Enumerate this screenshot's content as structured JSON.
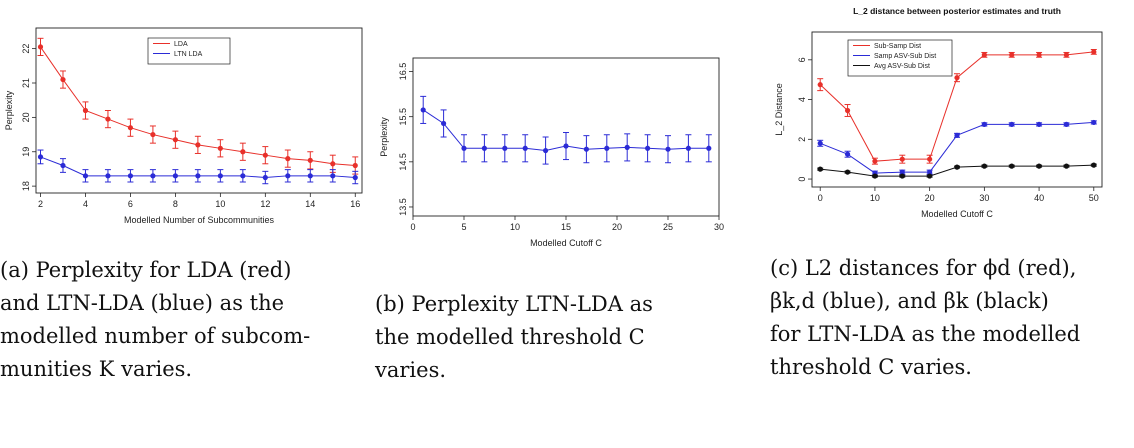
{
  "charts": [
    {
      "type": "line",
      "title": "",
      "xlabel": "Modelled Number of Subcommunities",
      "ylabel": "Perplexity",
      "xlim": [
        1.8,
        16.3
      ],
      "ylim": [
        17.8,
        22.6
      ],
      "xticks": [
        "2",
        "4",
        "6",
        "8",
        "10",
        "12",
        "14",
        "16"
      ],
      "xtick_values": [
        2,
        4,
        6,
        8,
        10,
        12,
        14,
        16
      ],
      "yticks": [
        "18",
        "19",
        "20",
        "21",
        "22"
      ],
      "ytick_values": [
        18,
        19,
        20,
        21,
        22
      ],
      "legend": {
        "placement": "top-center",
        "entries": [
          "LDA",
          "LTN LDA"
        ]
      },
      "grid": false,
      "series": [
        {
          "name": "LDA",
          "color": "#e8302a",
          "x": [
            2,
            3,
            4,
            5,
            6,
            7,
            8,
            9,
            10,
            11,
            12,
            13,
            14,
            15,
            16
          ],
          "y": [
            22.05,
            21.1,
            20.2,
            19.95,
            19.7,
            19.5,
            19.35,
            19.2,
            19.1,
            19.0,
            18.9,
            18.8,
            18.75,
            18.65,
            18.6
          ],
          "err": [
            0.25,
            0.25,
            0.25,
            0.25,
            0.25,
            0.25,
            0.25,
            0.25,
            0.25,
            0.25,
            0.25,
            0.25,
            0.25,
            0.25,
            0.25
          ]
        },
        {
          "name": "LTN LDA",
          "color": "#2b2bd6",
          "x": [
            2,
            3,
            4,
            5,
            6,
            7,
            8,
            9,
            10,
            11,
            12,
            13,
            14,
            15,
            16
          ],
          "y": [
            18.85,
            18.6,
            18.3,
            18.3,
            18.3,
            18.3,
            18.3,
            18.3,
            18.3,
            18.3,
            18.25,
            18.3,
            18.3,
            18.3,
            18.25
          ],
          "err": [
            0.2,
            0.2,
            0.18,
            0.18,
            0.18,
            0.18,
            0.18,
            0.18,
            0.18,
            0.18,
            0.18,
            0.18,
            0.18,
            0.18,
            0.18
          ]
        }
      ]
    },
    {
      "type": "line",
      "title": "",
      "xlabel": "Modelled Cutoff C",
      "ylabel": "Perplexity",
      "xlim": [
        0,
        30
      ],
      "ylim": [
        13.3,
        16.8
      ],
      "xticks": [
        "0",
        "5",
        "10",
        "15",
        "20",
        "25",
        "30"
      ],
      "xtick_values": [
        0,
        5,
        10,
        15,
        20,
        25,
        30
      ],
      "yticks": [
        "13.5",
        "14.5",
        "15.5",
        "16.5"
      ],
      "ytick_values": [
        13.5,
        14.5,
        15.5,
        16.5
      ],
      "legend": null,
      "grid": false,
      "series": [
        {
          "name": "",
          "color": "#2b2bd6",
          "x": [
            1,
            3,
            5,
            7,
            9,
            11,
            13,
            15,
            17,
            19,
            21,
            23,
            25,
            27,
            29
          ],
          "y": [
            15.65,
            15.35,
            14.8,
            14.8,
            14.8,
            14.8,
            14.75,
            14.85,
            14.78,
            14.8,
            14.82,
            14.8,
            14.78,
            14.8,
            14.8
          ],
          "err": [
            0.3,
            0.3,
            0.3,
            0.3,
            0.3,
            0.3,
            0.3,
            0.3,
            0.3,
            0.3,
            0.3,
            0.3,
            0.3,
            0.3,
            0.3
          ]
        }
      ]
    },
    {
      "type": "line",
      "title": "L_2 distance between posterior estimates and truth",
      "xlabel": "Modelled Cutoff C",
      "ylabel": "L_2 Distance",
      "xlim": [
        -1.5,
        51.5
      ],
      "ylim": [
        -0.4,
        7.4
      ],
      "xticks": [
        "0",
        "10",
        "20",
        "30",
        "40",
        "50"
      ],
      "xtick_values": [
        0,
        10,
        20,
        30,
        40,
        50
      ],
      "yticks": [
        "0",
        "2",
        "4",
        "6"
      ],
      "ytick_values": [
        0,
        2,
        4,
        6
      ],
      "legend": {
        "placement": "top-left",
        "entries": [
          "Sub-Samp Dist",
          "Samp ASV-Sub Dist",
          "Avg ASV-Sub Dist"
        ]
      },
      "grid": false,
      "series": [
        {
          "name": "Sub-Samp Dist",
          "color": "#e8302a",
          "x": [
            0,
            5,
            10,
            15,
            20,
            25,
            30,
            35,
            40,
            45,
            50
          ],
          "y": [
            4.75,
            3.45,
            0.9,
            1.0,
            1.0,
            5.1,
            6.25,
            6.25,
            6.25,
            6.25,
            6.4
          ],
          "err": [
            0.3,
            0.3,
            0.15,
            0.2,
            0.2,
            0.2,
            0.12,
            0.12,
            0.12,
            0.12,
            0.12
          ]
        },
        {
          "name": "Samp ASV-Sub Dist",
          "color": "#2b2bd6",
          "x": [
            0,
            5,
            10,
            15,
            20,
            25,
            30,
            35,
            40,
            45,
            50
          ],
          "y": [
            1.8,
            1.25,
            0.3,
            0.35,
            0.35,
            2.2,
            2.75,
            2.75,
            2.75,
            2.75,
            2.85
          ],
          "err": [
            0.15,
            0.15,
            0.1,
            0.1,
            0.1,
            0.1,
            0.08,
            0.08,
            0.08,
            0.08,
            0.08
          ]
        },
        {
          "name": "Avg ASV-Sub Dist",
          "color": "#111111",
          "x": [
            0,
            5,
            10,
            15,
            20,
            25,
            30,
            35,
            40,
            45,
            50
          ],
          "y": [
            0.5,
            0.35,
            0.15,
            0.15,
            0.15,
            0.6,
            0.65,
            0.65,
            0.65,
            0.65,
            0.7
          ],
          "err": [
            0.05,
            0.05,
            0.05,
            0.05,
            0.05,
            0.05,
            0.05,
            0.05,
            0.05,
            0.05,
            0.05
          ]
        }
      ]
    }
  ],
  "captions": [
    {
      "lines": [
        "(a) Perplexity for LDA (red)",
        "and LTN-LDA (blue) as the",
        "modelled number of subcom-",
        "munities K varies."
      ]
    },
    {
      "lines": [
        "(b) Perplexity LTN-LDA as",
        "the modelled threshold C",
        "varies."
      ]
    },
    {
      "lines": [
        "(c) L2 distances for ϕd (red),",
        "βk,d (blue), and βk (black)",
        "for LTN-LDA as the modelled",
        "threshold C varies."
      ]
    }
  ]
}
